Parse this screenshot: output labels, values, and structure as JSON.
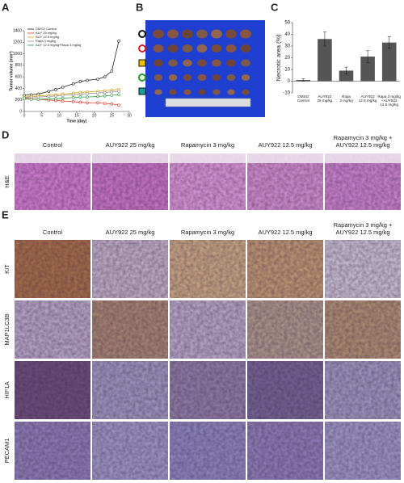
{
  "chart_data": [
    {
      "type": "line",
      "xlabel": "Time (day)",
      "ylabel": "Tumor volume (mm³)",
      "x": [
        0,
        2,
        4,
        7,
        9,
        11,
        14,
        16,
        18,
        21,
        23,
        25,
        27
      ],
      "xlim": [
        0,
        30
      ],
      "xticks": [
        0,
        5,
        10,
        15,
        20,
        25,
        30
      ],
      "ylim": [
        0,
        1400
      ],
      "yticks": [
        0,
        200,
        400,
        600,
        800,
        1000,
        1200,
        1400
      ],
      "legend": "upper left",
      "series": [
        {
          "name": "DMSO Control",
          "color": "#222222",
          "values": [
            280,
            290,
            300,
            350,
            380,
            420,
            480,
            520,
            540,
            560,
            600,
            700,
            1220
          ]
        },
        {
          "name": "AUY 25 mg/kg",
          "color": "#e0301e",
          "values": [
            230,
            220,
            210,
            200,
            190,
            180,
            170,
            160,
            150,
            150,
            140,
            130,
            110
          ]
        },
        {
          "name": "AUY 12.5 mg/kg",
          "color": "#e8a000",
          "values": [
            250,
            260,
            270,
            280,
            290,
            300,
            320,
            330,
            340,
            350,
            360,
            370,
            380
          ]
        },
        {
          "name": "Rapa 3 mg/kg",
          "color": "#8c8c8c",
          "values": [
            240,
            250,
            250,
            260,
            270,
            280,
            290,
            300,
            310,
            320,
            330,
            340,
            350
          ]
        },
        {
          "name": "AUY 12.5 mg/kg+Rapa 3 mg/kg",
          "color": "#2e9a3e",
          "values": [
            220,
            210,
            210,
            220,
            220,
            230,
            240,
            250,
            250,
            260,
            270,
            280,
            290
          ]
        }
      ]
    },
    {
      "type": "bar",
      "ylabel": "Necrotic area (%)",
      "color": "#555555",
      "categories": [
        [
          "DMSO",
          "Control"
        ],
        [
          "AUY922",
          "25 mg/kg"
        ],
        [
          "Rapa",
          "3 mg/kg"
        ],
        [
          "AUY922",
          "12.5 mg/kg"
        ],
        [
          "Rapa 3 mg/kg",
          "+AUY922",
          "12.5 mg/kg"
        ]
      ],
      "values": [
        1,
        36,
        9,
        21,
        33
      ],
      "errors": [
        1,
        6,
        3,
        5,
        5
      ],
      "ylim": [
        -10,
        50
      ],
      "yticks": [
        -10,
        0,
        10,
        20,
        30,
        40,
        50
      ]
    }
  ],
  "panels": {
    "labels": [
      "A",
      "B",
      "C",
      "D",
      "E"
    ],
    "d": {
      "columns": [
        [
          "Control"
        ],
        [
          "AUY922 25 mg/kg"
        ],
        [
          "Rapamycin 3 mg/kg"
        ],
        [
          "AUY922 12.5 mg/kg"
        ],
        [
          "Rapamycin 3 mg/kg +",
          "AUY922 12.5 mg/kg"
        ]
      ],
      "rows": [
        "H&E"
      ]
    },
    "e": {
      "columns": [
        [
          "Control"
        ],
        [
          "AUY922 25 mg/kg"
        ],
        [
          "Rapamycin 3 mg/kg"
        ],
        [
          "AUY922 12.5 mg/kg"
        ],
        [
          "Rapamycin 3 mg/kg +",
          "AUY922 12.5 mg/kg"
        ]
      ],
      "rows": [
        "KIT",
        "MAP1LC3B",
        "HIF1A",
        "PECAM1"
      ]
    }
  }
}
